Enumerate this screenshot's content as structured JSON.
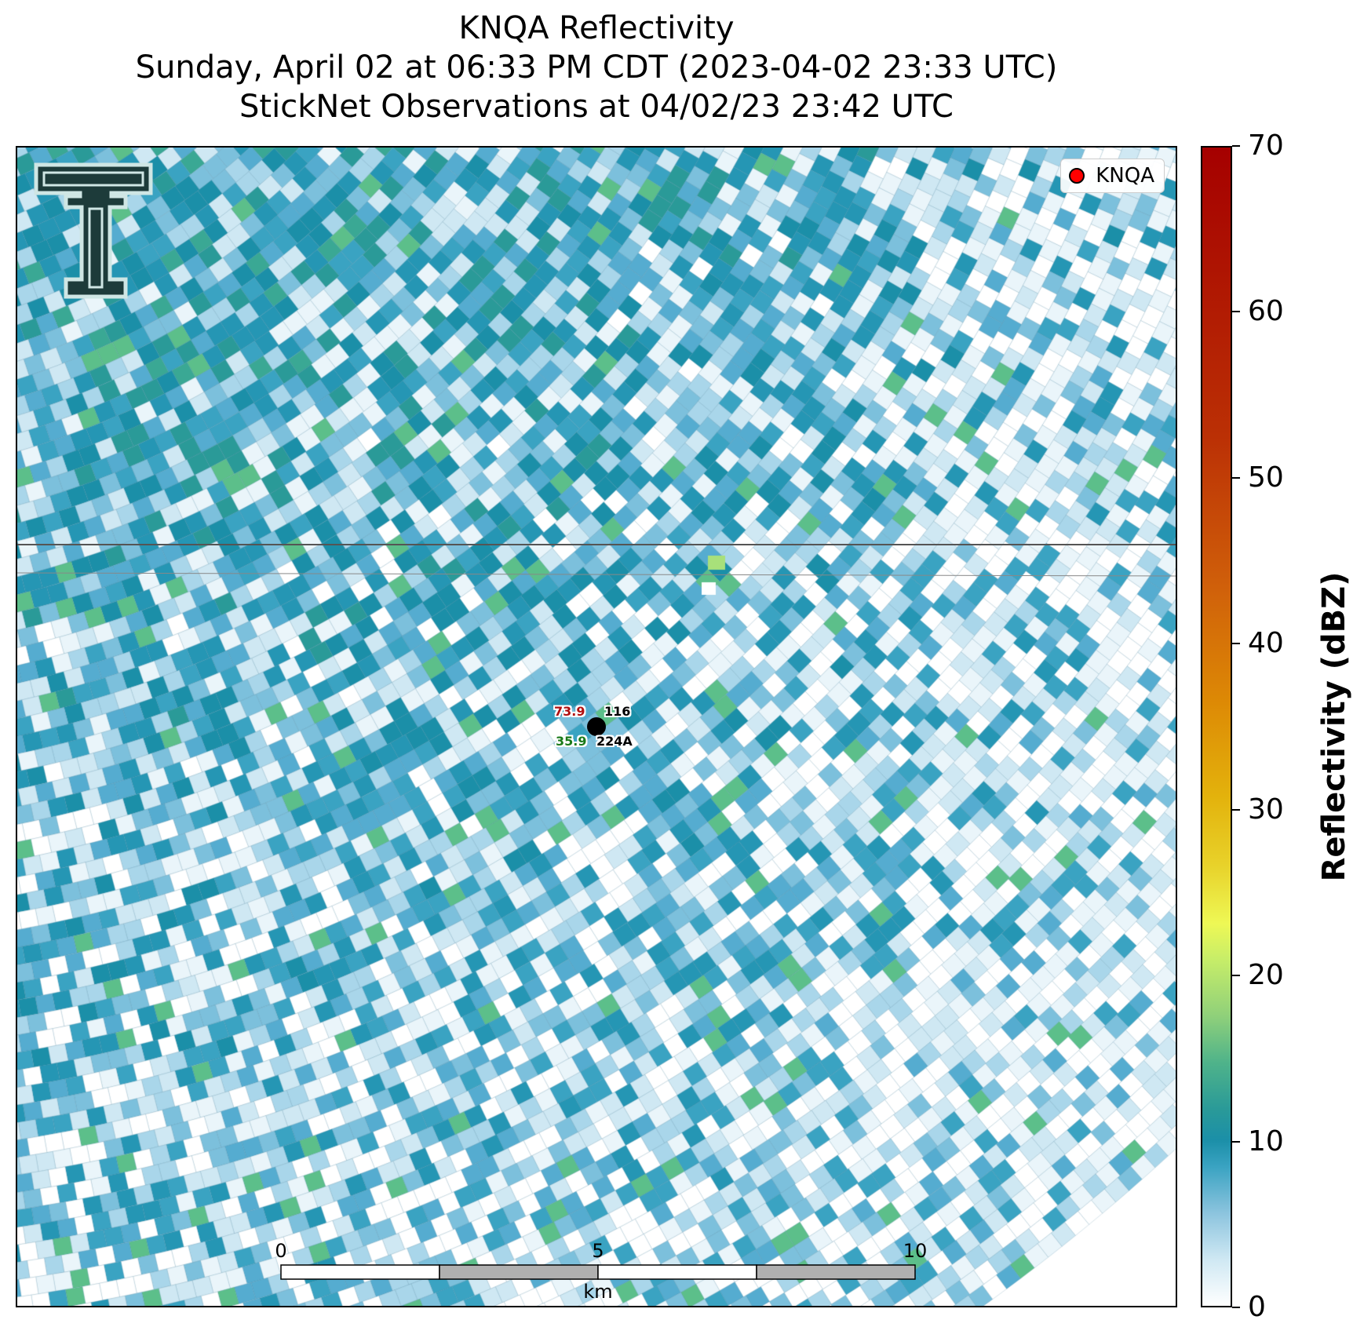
{
  "title": {
    "line1": "KNQA Reflectivity",
    "line2": "Sunday, April 02 at 06:33 PM CDT (2023-04-02 23:33 UTC)",
    "line3": "StickNet Observations at 04/02/23 23:42 UTC"
  },
  "legend": {
    "label": "KNQA",
    "marker_color": "#ff0000"
  },
  "station": {
    "ids": [
      "116",
      "224A"
    ],
    "temperature": "73.9",
    "dewpoint": "35.9",
    "temperature_color": "#b01010",
    "dewpoint_color": "#1a7a1a"
  },
  "scale_bar": {
    "ticks": [
      "0",
      "5",
      "10"
    ],
    "unit": "km"
  },
  "colorbar": {
    "label": "Reflectivity (dBZ)",
    "ticks": [
      "0",
      "10",
      "20",
      "30",
      "40",
      "50",
      "60",
      "70"
    ],
    "min": 0,
    "max": 70
  },
  "colors": {
    "radar_low": "#ffffff",
    "radar_mid": "#1b8fa8",
    "radar_green": "#8fd07a"
  }
}
